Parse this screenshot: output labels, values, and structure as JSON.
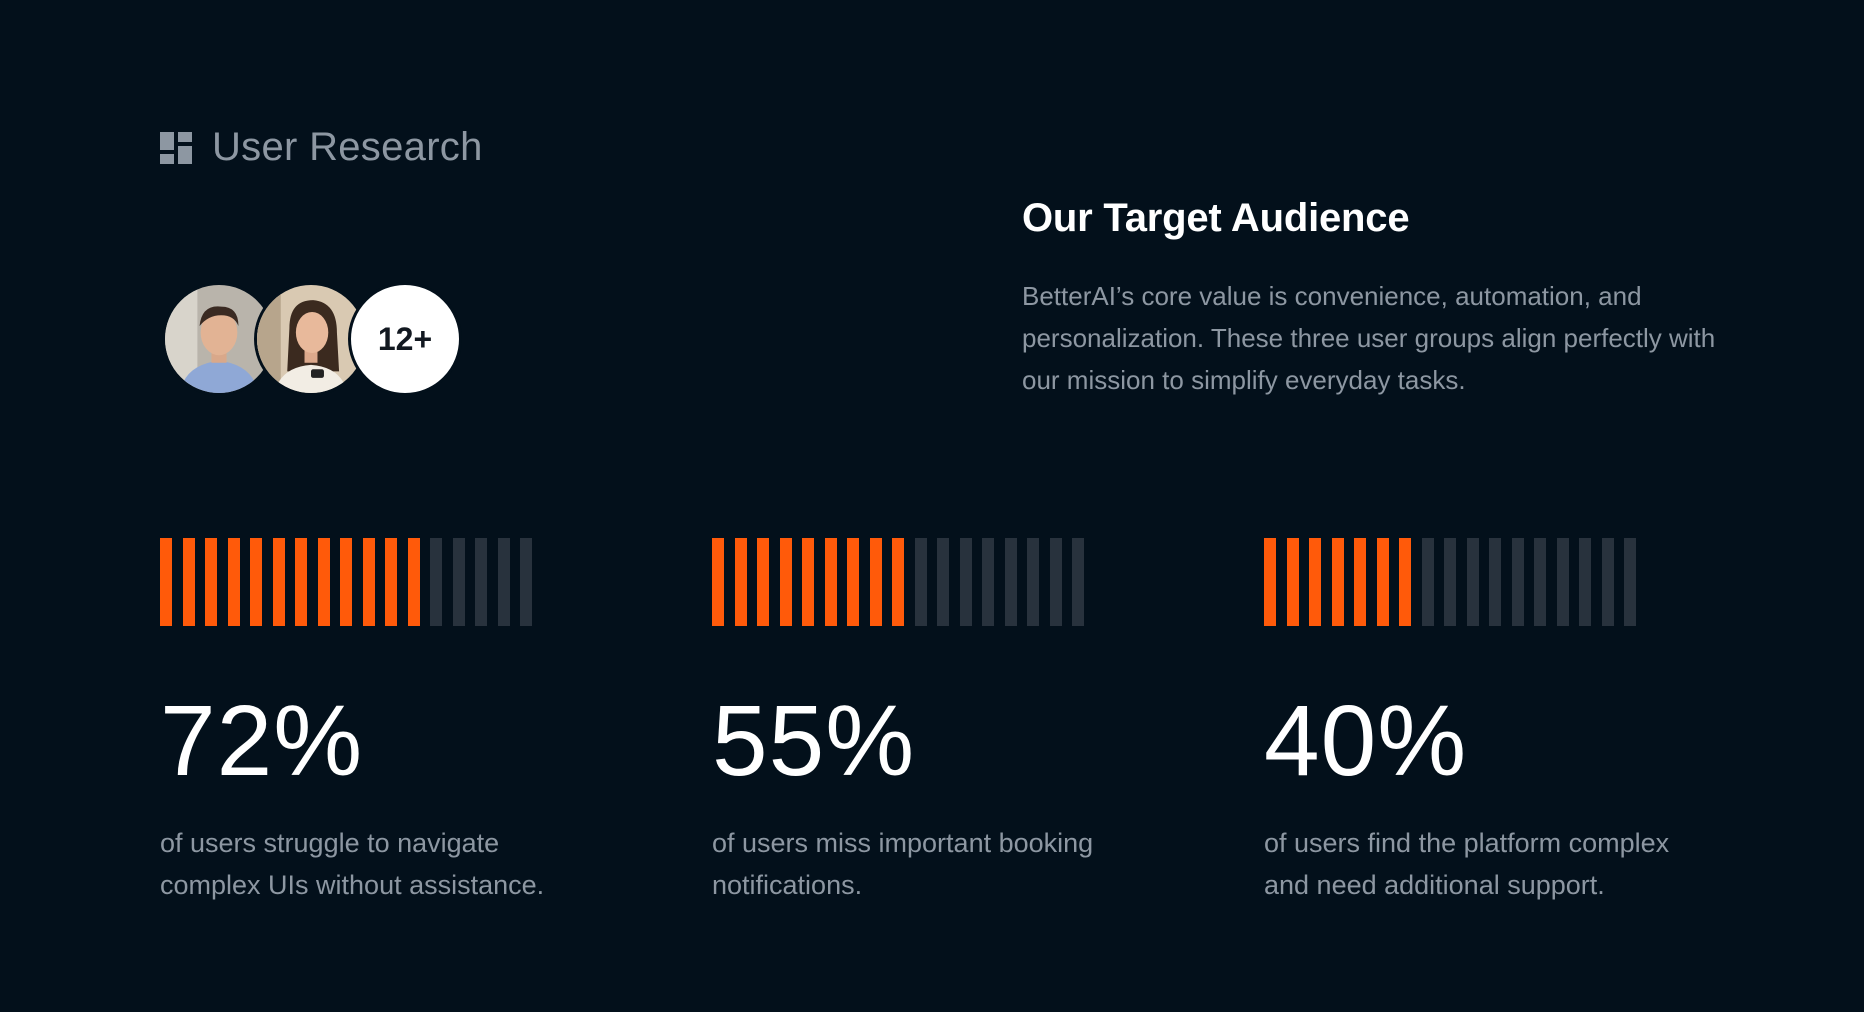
{
  "section": {
    "title": "User Research",
    "icon": "dashboard-grid-icon"
  },
  "users": {
    "avatars": [
      "male-user-avatar",
      "female-user-avatar"
    ],
    "count_label": "12+"
  },
  "audience": {
    "heading": "Our Target Audience",
    "body": "BetterAI’s core value is convenience, automation, and personalization. These three user groups align perfectly with our mission to simplify everyday tasks."
  },
  "colors": {
    "background": "#03101b",
    "accent": "#ff5a0a",
    "bar_inactive": "#28323d",
    "muted_text": "#8d97a2"
  },
  "stats": [
    {
      "value": "72%",
      "fraction": 0.72,
      "description": "of users struggle to navigate complex UIs without assistance."
    },
    {
      "value": "55%",
      "fraction": 0.55,
      "description": "of users miss important booking notifications."
    },
    {
      "value": "40%",
      "fraction": 0.4,
      "description": "of users find the platform complex and need additional support."
    }
  ]
}
